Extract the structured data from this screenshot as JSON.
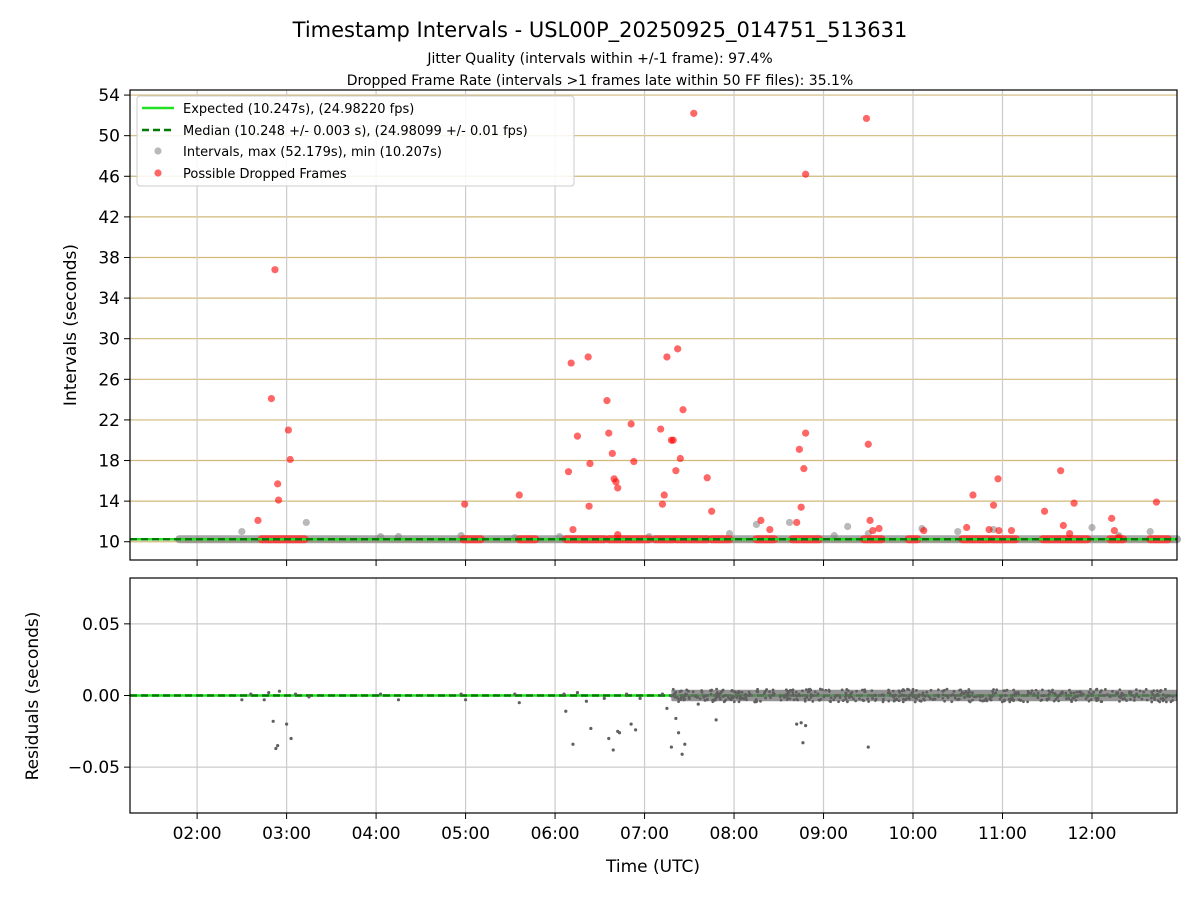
{
  "chart_data": [
    {
      "type": "scatter",
      "title": "Timestamp Intervals - USL00P_20250925_014751_513631",
      "subtitle_1": "Jitter Quality (intervals within +/-1 frame): 97.4%",
      "subtitle_2": "Dropped Frame Rate (intervals >1 frames late within 50 FF files): 35.1%",
      "ylabel": "Intervals (seconds)",
      "ylim": [
        8.2,
        54.5
      ],
      "yticks": [
        10,
        14,
        18,
        22,
        26,
        30,
        34,
        38,
        42,
        46,
        50,
        54
      ],
      "ytick_labels": [
        "10",
        "14",
        "18",
        "22",
        "26",
        "30",
        "34",
        "38",
        "42",
        "46",
        "50",
        "54"
      ],
      "xlim": [
        1.25,
        12.95
      ],
      "legend": {
        "position": "top-left",
        "expected": "Expected (10.247s), (24.98220 fps)",
        "median": "Median (10.248 +/- 0.003 s), (24.98099 +/- 0.01 fps)",
        "intervals": "Intervals, max (52.179s), min (10.207s)",
        "dropped": "Possible Dropped Frames"
      },
      "expected_value": 10.247,
      "median_value": 10.248,
      "series_intervals": {
        "name": "Intervals, max (52.179s), min (10.207s)",
        "line_ranges": [
          [
            1.8,
            12.95
          ]
        ],
        "points": [
          [
            2.5,
            11.0
          ],
          [
            3.22,
            11.9
          ],
          [
            4.05,
            10.5
          ],
          [
            4.25,
            10.5
          ],
          [
            4.95,
            10.6
          ],
          [
            5.55,
            10.4
          ],
          [
            6.05,
            10.5
          ],
          [
            7.05,
            10.5
          ],
          [
            7.95,
            10.8
          ],
          [
            8.25,
            11.7
          ],
          [
            8.62,
            11.9
          ],
          [
            9.12,
            10.6
          ],
          [
            9.27,
            11.5
          ],
          [
            9.5,
            10.8
          ],
          [
            10.1,
            11.3
          ],
          [
            10.5,
            11.0
          ],
          [
            10.9,
            11.2
          ],
          [
            12.0,
            11.4
          ],
          [
            12.65,
            11.0
          ],
          [
            12.3,
            10.6
          ]
        ]
      },
      "series_dropped": {
        "name": "Possible Dropped Frames",
        "band_value": 10.25,
        "bands": [
          [
            2.72,
            3.2
          ],
          [
            4.97,
            5.17
          ],
          [
            5.6,
            5.78
          ],
          [
            6.12,
            6.55
          ],
          [
            6.6,
            7.05
          ],
          [
            7.12,
            7.32
          ],
          [
            7.35,
            7.7
          ],
          [
            7.75,
            7.95
          ],
          [
            8.25,
            8.45
          ],
          [
            8.65,
            8.95
          ],
          [
            9.45,
            9.65
          ],
          [
            9.95,
            10.05
          ],
          [
            10.55,
            10.85
          ],
          [
            10.88,
            11.15
          ],
          [
            11.45,
            11.95
          ],
          [
            12.2,
            12.35
          ],
          [
            12.65,
            12.85
          ]
        ],
        "points": [
          [
            2.68,
            12.1
          ],
          [
            2.83,
            24.1
          ],
          [
            2.87,
            36.8
          ],
          [
            2.9,
            15.7
          ],
          [
            2.91,
            14.1
          ],
          [
            3.02,
            21.0
          ],
          [
            3.04,
            18.1
          ],
          [
            4.99,
            13.7
          ],
          [
            5.6,
            14.6
          ],
          [
            6.15,
            16.9
          ],
          [
            6.18,
            27.6
          ],
          [
            6.2,
            11.2
          ],
          [
            6.25,
            20.4
          ],
          [
            6.37,
            28.2
          ],
          [
            6.38,
            13.5
          ],
          [
            6.39,
            17.7
          ],
          [
            6.58,
            23.9
          ],
          [
            6.6,
            20.7
          ],
          [
            6.64,
            18.7
          ],
          [
            6.66,
            16.2
          ],
          [
            6.68,
            15.9
          ],
          [
            6.7,
            15.3
          ],
          [
            6.7,
            10.7
          ],
          [
            6.85,
            21.6
          ],
          [
            6.88,
            17.9
          ],
          [
            7.18,
            21.1
          ],
          [
            7.2,
            13.7
          ],
          [
            7.22,
            14.6
          ],
          [
            7.25,
            28.2
          ],
          [
            7.3,
            20.0
          ],
          [
            7.32,
            20.0
          ],
          [
            7.35,
            17.0
          ],
          [
            7.37,
            29.0
          ],
          [
            7.4,
            18.2
          ],
          [
            7.43,
            23.0
          ],
          [
            7.55,
            52.2
          ],
          [
            7.7,
            16.3
          ],
          [
            7.75,
            13.0
          ],
          [
            8.3,
            12.1
          ],
          [
            8.4,
            11.2
          ],
          [
            8.7,
            11.9
          ],
          [
            8.73,
            19.1
          ],
          [
            8.75,
            13.4
          ],
          [
            8.78,
            17.2
          ],
          [
            8.8,
            20.7
          ],
          [
            8.8,
            46.2
          ],
          [
            9.48,
            51.7
          ],
          [
            9.5,
            19.6
          ],
          [
            9.52,
            12.1
          ],
          [
            9.55,
            11.1
          ],
          [
            9.62,
            11.3
          ],
          [
            10.12,
            11.1
          ],
          [
            10.6,
            11.4
          ],
          [
            10.67,
            14.6
          ],
          [
            10.85,
            11.2
          ],
          [
            10.9,
            13.6
          ],
          [
            10.95,
            16.2
          ],
          [
            10.96,
            11.1
          ],
          [
            11.1,
            11.1
          ],
          [
            11.47,
            13.0
          ],
          [
            11.65,
            17.0
          ],
          [
            11.68,
            11.6
          ],
          [
            11.75,
            10.8
          ],
          [
            11.8,
            13.8
          ],
          [
            12.22,
            12.3
          ],
          [
            12.25,
            11.1
          ],
          [
            12.3,
            10.4
          ],
          [
            12.72,
            13.9
          ]
        ]
      }
    },
    {
      "type": "scatter",
      "xlabel": "Time (UTC)",
      "ylabel": "Residuals (seconds)",
      "ylim": [
        -0.082,
        0.082
      ],
      "yticks": [
        0.05,
        0.0,
        -0.05
      ],
      "ytick_labels": [
        "0.05",
        "0.00",
        "−0.05"
      ],
      "xlim": [
        1.25,
        12.95
      ],
      "xticks": [
        2,
        3,
        4,
        5,
        6,
        7,
        8,
        9,
        10,
        11,
        12
      ],
      "xtick_labels": [
        "02:00",
        "03:00",
        "04:00",
        "05:00",
        "06:00",
        "07:00",
        "08:00",
        "09:00",
        "10:00",
        "11:00",
        "12:00"
      ],
      "dense_range": [
        7.3,
        12.95
      ],
      "points": [
        [
          2.5,
          -0.003
        ],
        [
          2.6,
          0.001
        ],
        [
          2.75,
          -0.003
        ],
        [
          2.8,
          0.002
        ],
        [
          2.85,
          -0.018
        ],
        [
          2.88,
          -0.037
        ],
        [
          2.9,
          -0.035
        ],
        [
          2.92,
          0.003
        ],
        [
          3.0,
          -0.02
        ],
        [
          3.05,
          -0.03
        ],
        [
          3.1,
          0.001
        ],
        [
          3.25,
          -0.001
        ],
        [
          4.05,
          0.001
        ],
        [
          4.25,
          -0.003
        ],
        [
          4.95,
          0.001
        ],
        [
          5.0,
          -0.003
        ],
        [
          5.55,
          0.001
        ],
        [
          5.6,
          -0.005
        ],
        [
          6.1,
          0.001
        ],
        [
          6.12,
          -0.011
        ],
        [
          6.2,
          -0.034
        ],
        [
          6.25,
          0.002
        ],
        [
          6.35,
          -0.004
        ],
        [
          6.4,
          -0.023
        ],
        [
          6.55,
          -0.002
        ],
        [
          6.6,
          -0.03
        ],
        [
          6.65,
          -0.038
        ],
        [
          6.7,
          -0.025
        ],
        [
          6.72,
          -0.026
        ],
        [
          6.8,
          0.001
        ],
        [
          6.85,
          -0.02
        ],
        [
          6.9,
          -0.024
        ],
        [
          6.95,
          -0.002
        ],
        [
          7.2,
          0.001
        ],
        [
          7.25,
          -0.009
        ],
        [
          7.3,
          -0.036
        ],
        [
          7.35,
          -0.016
        ],
        [
          7.38,
          -0.026
        ],
        [
          7.42,
          -0.041
        ],
        [
          7.45,
          -0.034
        ],
        [
          7.5,
          -0.002
        ],
        [
          7.6,
          -0.006
        ],
        [
          7.8,
          -0.017
        ],
        [
          8.7,
          -0.02
        ],
        [
          8.75,
          -0.019
        ],
        [
          8.77,
          -0.033
        ],
        [
          8.8,
          -0.021
        ],
        [
          9.5,
          -0.036
        ]
      ]
    }
  ]
}
